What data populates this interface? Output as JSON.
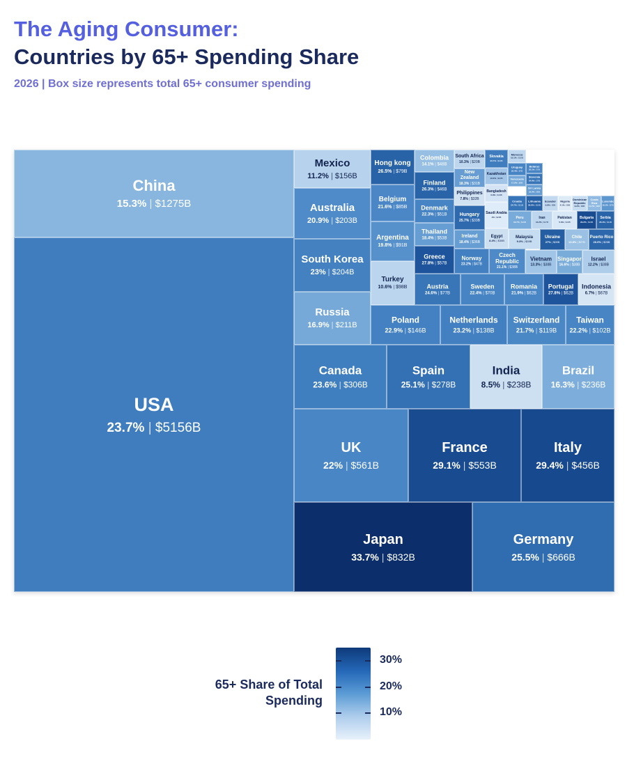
{
  "header": {
    "title_line1": "The Aging Consumer:",
    "title_line2": "Countries by 65+ Spending Share",
    "subtitle": "2026  |  Box size represents total 65+ consumer spending"
  },
  "chart_data": {
    "type": "treemap",
    "size_measure": "total 65+ consumer spending ($B)",
    "color_measure": "65+ share of total spending (%)",
    "items": [
      {
        "country": "USA",
        "share": "23.7%",
        "spend": "$5156B",
        "pct": 23.7
      },
      {
        "country": "China",
        "share": "15.3%",
        "spend": "$1275B",
        "pct": 15.3
      },
      {
        "country": "Mexico",
        "share": "11.2%",
        "spend": "$156B",
        "pct": 11.2
      },
      {
        "country": "Australia",
        "share": "20.9%",
        "spend": "$203B",
        "pct": 20.9
      },
      {
        "country": "South Korea",
        "share": "23%",
        "spend": "$204B",
        "pct": 23.0
      },
      {
        "country": "Russia",
        "share": "16.9%",
        "spend": "$211B",
        "pct": 16.9
      },
      {
        "country": "Hong kong",
        "share": "26.5%",
        "spend": "$79B",
        "pct": 26.5
      },
      {
        "country": "Colombia",
        "share": "14.1%",
        "spend": "$48B",
        "pct": 14.1
      },
      {
        "country": "South Africa",
        "share": "10.3%",
        "spend": "$20B",
        "pct": 10.3
      },
      {
        "country": "Slovakia",
        "share": "23.7%",
        "spend": "$10B",
        "pct": 23.7
      },
      {
        "country": "Morocco",
        "share": "10.1%",
        "spend": "$10B",
        "pct": 10.1
      },
      {
        "country": "Belarus",
        "share": "22.1%",
        "spend": "$7B",
        "pct": 22.1
      },
      {
        "country": "Uruguay",
        "share": "22.4%",
        "spend": "$7B",
        "pct": 22.4
      },
      {
        "country": "Slovenia",
        "share": "24.6%",
        "spend": "$7B",
        "pct": 24.6
      },
      {
        "country": "Venezuela",
        "share": "17.2%",
        "spend": "$6B",
        "pct": 17.2
      },
      {
        "country": "Sri Lanka",
        "share": "18.5%",
        "spend": "$6B",
        "pct": 18.5
      },
      {
        "country": "Finland",
        "share": "26.3%",
        "spend": "$46B",
        "pct": 26.3
      },
      {
        "country": "New Zealand",
        "share": "18.3%",
        "spend": "$31B",
        "pct": 18.3
      },
      {
        "country": "Kazakhstan",
        "share": "13.2%",
        "spend": "$20B",
        "pct": 13.2
      },
      {
        "country": "Belgium",
        "share": "21.6%",
        "spend": "$85B",
        "pct": 21.6
      },
      {
        "country": "Denmark",
        "share": "22.3%",
        "spend": "$51B",
        "pct": 22.3
      },
      {
        "country": "Philippines",
        "share": "7.8%",
        "spend": "$32B",
        "pct": 7.8
      },
      {
        "country": "Bangladesh",
        "share": "6.9%",
        "spend": "$19B",
        "pct": 6.9
      },
      {
        "country": "Croatia",
        "share": "24.7%",
        "spend": "$11B",
        "pct": 24.7
      },
      {
        "country": "Lithuania",
        "share": "26.6%",
        "spend": "$10B",
        "pct": 26.6
      },
      {
        "country": "Ecuador",
        "share": "9.8%",
        "spend": "$9B",
        "pct": 9.8
      },
      {
        "country": "Nigeria",
        "share": "4.1%",
        "spend": "$9B",
        "pct": 4.1
      },
      {
        "country": "Dominican Republic",
        "share": "9.2%",
        "spend": "$8B",
        "pct": 9.2
      },
      {
        "country": "Costa Rica",
        "share": "14.7%",
        "spend": "$8B",
        "pct": 14.7
      },
      {
        "country": "Luxembourg",
        "share": "19.1%",
        "spend": "$7B",
        "pct": 19.1
      },
      {
        "country": "Argentina",
        "share": "19.8%",
        "spend": "$91B",
        "pct": 19.8
      },
      {
        "country": "Thailand",
        "share": "18.4%",
        "spend": "$53B",
        "pct": 18.4
      },
      {
        "country": "Hungary",
        "share": "25.7%",
        "spend": "$33B",
        "pct": 25.7
      },
      {
        "country": "Saudi Arabia",
        "share": "4%",
        "spend": "$20B",
        "pct": 4.0
      },
      {
        "country": "Peru",
        "share": "16.7%",
        "spend": "$19B",
        "pct": 16.7
      },
      {
        "country": "Iran",
        "share": "10.2%",
        "spend": "$17B",
        "pct": 10.2
      },
      {
        "country": "Pakistan",
        "share": "5.3%",
        "spend": "$16B",
        "pct": 5.3
      },
      {
        "country": "Bulgaria",
        "share": "29.2%",
        "spend": "$13B",
        "pct": 29.2
      },
      {
        "country": "Serbia",
        "share": "26.4%",
        "spend": "$11B",
        "pct": 26.4
      },
      {
        "country": "Ireland",
        "share": "18.4%",
        "spend": "$36B",
        "pct": 18.4
      },
      {
        "country": "Egypt",
        "share": "8.4%",
        "spend": "$30B",
        "pct": 8.4
      },
      {
        "country": "Malaysia",
        "share": "9.3%",
        "spend": "$28B",
        "pct": 9.3
      },
      {
        "country": "Ukraine",
        "share": "27%",
        "spend": "$28B",
        "pct": 27.0
      },
      {
        "country": "Chile",
        "share": "13.8%",
        "spend": "$27B",
        "pct": 13.8
      },
      {
        "country": "Puerto Rico",
        "share": "26.0%",
        "spend": "$26B",
        "pct": 26.0
      },
      {
        "country": "Turkey",
        "share": "10.6%",
        "spend": "$98B",
        "pct": 10.6
      },
      {
        "country": "Greece",
        "share": "27.8%",
        "spend": "$57B",
        "pct": 27.8
      },
      {
        "country": "Norway",
        "share": "23.2%",
        "spend": "$47B",
        "pct": 23.2
      },
      {
        "country": "Czech Republic",
        "share": "21.1%",
        "spend": "$38B",
        "pct": 21.1
      },
      {
        "country": "Vietnam",
        "share": "13.3%",
        "spend": "$38B",
        "pct": 13.3
      },
      {
        "country": "Singapore",
        "share": "16.6%",
        "spend": "$38B",
        "pct": 16.6
      },
      {
        "country": "Israel",
        "share": "12.2%",
        "spend": "$38B",
        "pct": 12.2
      },
      {
        "country": "Austria",
        "share": "24.6%",
        "spend": "$77B",
        "pct": 24.6
      },
      {
        "country": "Sweden",
        "share": "22.4%",
        "spend": "$70B",
        "pct": 22.4
      },
      {
        "country": "Romania",
        "share": "21.9%",
        "spend": "$62B",
        "pct": 21.9
      },
      {
        "country": "Portugal",
        "share": "27.8%",
        "spend": "$62B",
        "pct": 27.8
      },
      {
        "country": "Indonesia",
        "share": "6.7%",
        "spend": "$67B",
        "pct": 6.7
      },
      {
        "country": "Poland",
        "share": "22.9%",
        "spend": "$146B",
        "pct": 22.9
      },
      {
        "country": "Netherlands",
        "share": "23.2%",
        "spend": "$138B",
        "pct": 23.2
      },
      {
        "country": "Switzerland",
        "share": "21.7%",
        "spend": "$119B",
        "pct": 21.7
      },
      {
        "country": "Taiwan",
        "share": "22.2%",
        "spend": "$102B",
        "pct": 22.2
      },
      {
        "country": "Canada",
        "share": "23.6%",
        "spend": "$306B",
        "pct": 23.6
      },
      {
        "country": "Spain",
        "share": "25.1%",
        "spend": "$278B",
        "pct": 25.1
      },
      {
        "country": "India",
        "share": "8.5%",
        "spend": "$238B",
        "pct": 8.5
      },
      {
        "country": "Brazil",
        "share": "16.3%",
        "spend": "$236B",
        "pct": 16.3
      },
      {
        "country": "UK",
        "share": "22%",
        "spend": "$561B",
        "pct": 22.0
      },
      {
        "country": "France",
        "share": "29.1%",
        "spend": "$553B",
        "pct": 29.1
      },
      {
        "country": "Italy",
        "share": "29.4%",
        "spend": "$456B",
        "pct": 29.4
      },
      {
        "country": "Japan",
        "share": "33.7%",
        "spend": "$832B",
        "pct": 33.7
      },
      {
        "country": "Germany",
        "share": "25.5%",
        "spend": "$666B",
        "pct": 25.5
      }
    ],
    "legend": {
      "title": "65+ Share of Total Spending",
      "ticks": [
        "30%",
        "20%",
        "10%"
      ],
      "tick_values": [
        30,
        20,
        10
      ],
      "range": [
        0,
        35
      ]
    }
  }
}
